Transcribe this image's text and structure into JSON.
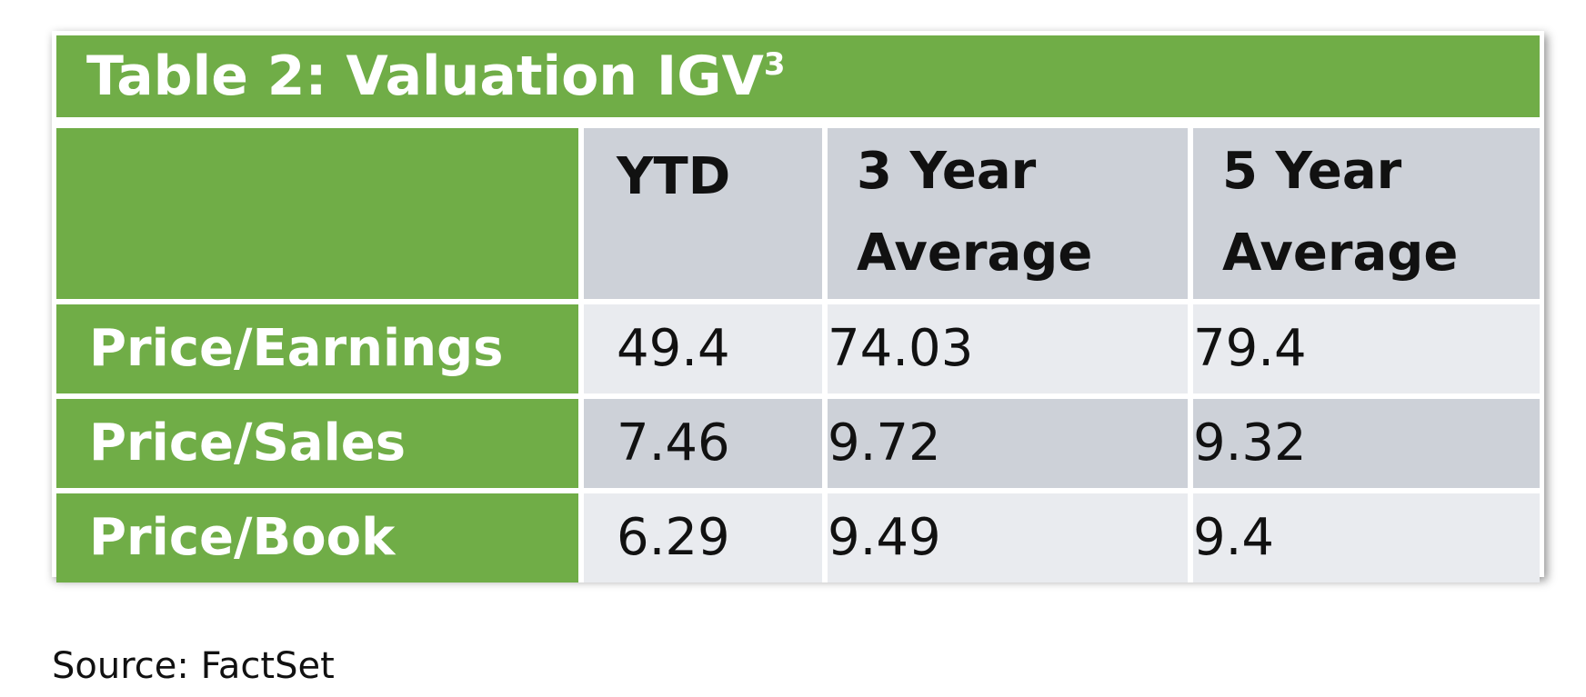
{
  "table": {
    "title": "Table 2: Valuation IGV",
    "title_superscript": "3",
    "columns": [
      "",
      "YTD",
      "3 Year Average",
      "5 Year Average"
    ],
    "column_header_lines": {
      "ytd": [
        "YTD"
      ],
      "three_year": [
        "3 Year",
        "Average"
      ],
      "five_year": [
        "5 Year",
        "Average"
      ]
    },
    "rows": [
      {
        "label": "Price/Earnings",
        "ytd": "49.4",
        "three_year": "74.03",
        "five_year": "79.4"
      },
      {
        "label": "Price/Sales",
        "ytd": "7.46",
        "three_year": "9.72",
        "five_year": "9.32"
      },
      {
        "label": "Price/Book",
        "ytd": "6.29",
        "three_year": "9.49",
        "five_year": "9.4"
      }
    ]
  },
  "source": "Source: FactSet",
  "colors": {
    "header_green": "#70ad47",
    "cell_dark": "#cdd1d8",
    "cell_light": "#e9ebef",
    "label_text": "#ffffff",
    "value_text": "#111111"
  }
}
